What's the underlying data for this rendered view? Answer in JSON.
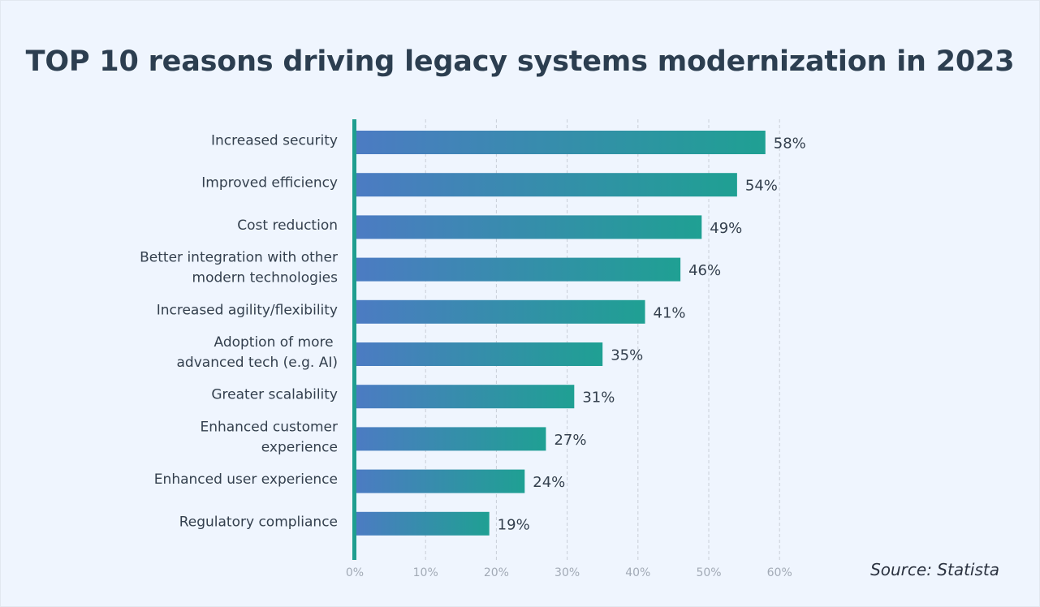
{
  "title": "TOP 10 reasons driving legacy systems modernization in 2023",
  "source": "Source: Statista",
  "colors": {
    "background": "#eff5fe",
    "title": "#2c3e50",
    "bar_start": "#4c7bc3",
    "bar_end": "#1fa093",
    "axis": "#1f9e8f",
    "grid": "#c9ced8",
    "tick_text": "#a2aab6"
  },
  "chart_data": {
    "type": "bar",
    "orientation": "horizontal",
    "title": "TOP 10 reasons driving legacy systems modernization in 2023",
    "xlabel": "",
    "ylabel": "",
    "xlim": [
      0,
      60
    ],
    "grid": true,
    "categories": [
      [
        "Increased security"
      ],
      [
        "Improved efficiency"
      ],
      [
        "Cost reduction"
      ],
      [
        "Better integration with other",
        "modern technologies"
      ],
      [
        "Increased agility/flexibility"
      ],
      [
        "Adoption of more ",
        "advanced tech (e.g. AI)"
      ],
      [
        "Greater scalability"
      ],
      [
        "Enhanced customer",
        "experience"
      ],
      [
        "Enhanced user experience"
      ],
      [
        "Regulatory compliance"
      ]
    ],
    "values": [
      58,
      54,
      49,
      46,
      41,
      35,
      31,
      27,
      24,
      19
    ],
    "value_labels": [
      "58%",
      "54%",
      "49%",
      "46%",
      "41%",
      "35%",
      "31%",
      "27%",
      "24%",
      "19%"
    ],
    "x_ticks": [
      0,
      10,
      20,
      30,
      40,
      50,
      60
    ],
    "x_tick_labels": [
      "0%",
      "10%",
      "20%",
      "30%",
      "40%",
      "50%",
      "60%"
    ],
    "source": "Source: Statista"
  }
}
